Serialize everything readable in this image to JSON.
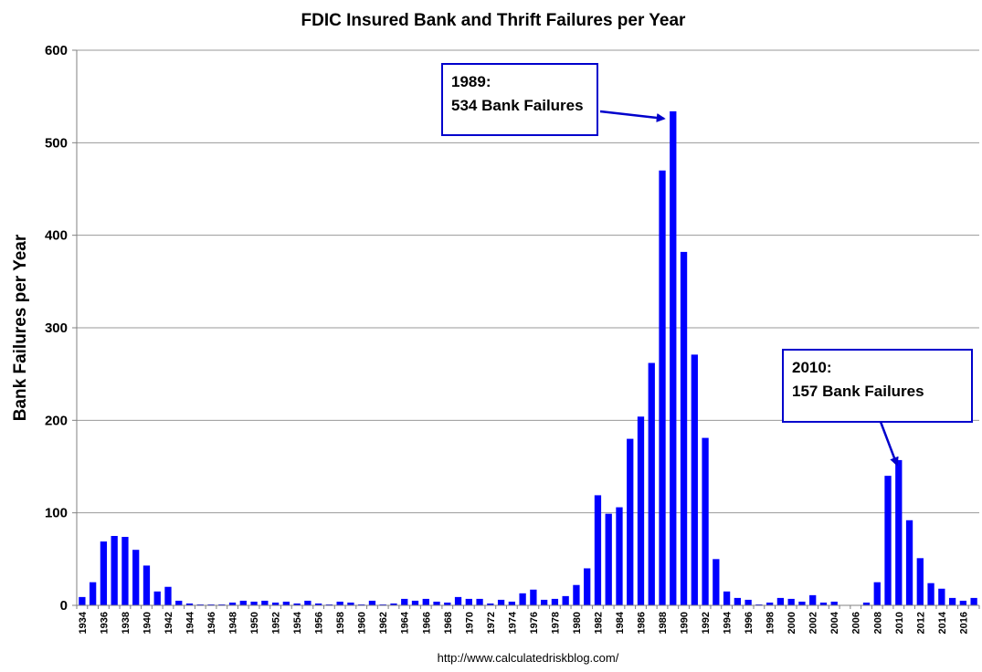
{
  "chart_data": {
    "type": "bar",
    "title": "FDIC Insured Bank and Thrift Failures per Year",
    "xlabel": "",
    "ylabel": "Bank Failures per Year",
    "source": "http://www.calculatedriskblog.com/",
    "ylim": [
      0,
      600
    ],
    "yticks": [
      0,
      100,
      200,
      300,
      400,
      500,
      600
    ],
    "grid": true,
    "bar_color": "#0000ff",
    "annotation_color": "#0000cc",
    "x": [
      1934,
      1935,
      1936,
      1937,
      1938,
      1939,
      1940,
      1941,
      1942,
      1943,
      1944,
      1945,
      1946,
      1947,
      1948,
      1949,
      1950,
      1951,
      1952,
      1953,
      1954,
      1955,
      1956,
      1957,
      1958,
      1959,
      1960,
      1961,
      1962,
      1963,
      1964,
      1965,
      1966,
      1967,
      1968,
      1969,
      1970,
      1971,
      1972,
      1973,
      1974,
      1975,
      1976,
      1977,
      1978,
      1979,
      1980,
      1981,
      1982,
      1983,
      1984,
      1985,
      1986,
      1987,
      1988,
      1989,
      1990,
      1991,
      1992,
      1993,
      1994,
      1995,
      1996,
      1997,
      1998,
      1999,
      2000,
      2001,
      2002,
      2003,
      2004,
      2005,
      2006,
      2007,
      2008,
      2009,
      2010,
      2011,
      2012,
      2013,
      2014,
      2015,
      2016,
      2017
    ],
    "values": [
      9,
      25,
      69,
      75,
      74,
      60,
      43,
      15,
      20,
      5,
      2,
      1,
      1,
      1,
      3,
      5,
      4,
      5,
      3,
      4,
      2,
      5,
      2,
      1,
      4,
      3,
      1,
      5,
      1,
      2,
      7,
      5,
      7,
      4,
      3,
      9,
      7,
      7,
      2,
      6,
      4,
      13,
      17,
      6,
      7,
      10,
      22,
      40,
      119,
      99,
      106,
      180,
      204,
      262,
      470,
      534,
      382,
      271,
      181,
      50,
      15,
      8,
      6,
      1,
      3,
      8,
      7,
      4,
      11,
      3,
      4,
      0,
      0,
      3,
      25,
      140,
      157,
      92,
      51,
      24,
      18,
      8,
      5,
      8
    ],
    "xtick_labels": [
      "1934",
      "1936",
      "1938",
      "1940",
      "1942",
      "1944",
      "1946",
      "1948",
      "1950",
      "1952",
      "1954",
      "1956",
      "1958",
      "1960",
      "1962",
      "1964",
      "1966",
      "1968",
      "1970",
      "1972",
      "1974",
      "1976",
      "1978",
      "1980",
      "1982",
      "1984",
      "1986",
      "1988",
      "1990",
      "1992",
      "1994",
      "1996",
      "1998",
      "2000",
      "2002",
      "2004",
      "2006",
      "2008",
      "2010",
      "2012",
      "2014",
      "2016"
    ],
    "annotations": [
      {
        "target_year": 1989,
        "line1": "1989:",
        "line2": "534 Bank Failures"
      },
      {
        "target_year": 2010,
        "line1": "2010:",
        "line2": "157 Bank Failures"
      }
    ]
  }
}
